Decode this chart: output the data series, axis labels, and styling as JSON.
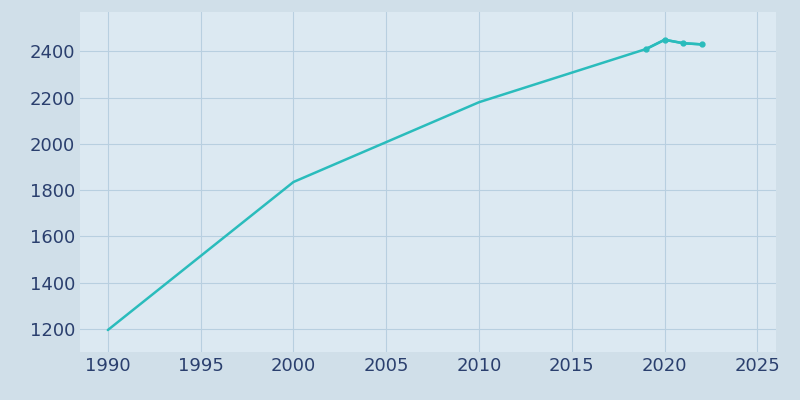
{
  "years": [
    1990,
    2000,
    2010,
    2019,
    2020,
    2021,
    2022
  ],
  "population": [
    1195,
    1835,
    2180,
    2410,
    2450,
    2435,
    2430
  ],
  "line_color": "#2abcbc",
  "marker_years": [
    2019,
    2020,
    2021,
    2022
  ],
  "marker_population": [
    2410,
    2450,
    2435,
    2430
  ],
  "plot_bg_color": "#dce9f2",
  "fig_bg_color": "#d0dfe9",
  "xlim": [
    1988.5,
    2026
  ],
  "ylim": [
    1100,
    2570
  ],
  "xticks": [
    1990,
    1995,
    2000,
    2005,
    2010,
    2015,
    2020,
    2025
  ],
  "yticks": [
    1200,
    1400,
    1600,
    1800,
    2000,
    2200,
    2400
  ],
  "tick_color": "#2a3f6e",
  "tick_fontsize": 13,
  "grid_color": "#b8cfe0",
  "linewidth": 1.8,
  "marker_size": 3.5
}
